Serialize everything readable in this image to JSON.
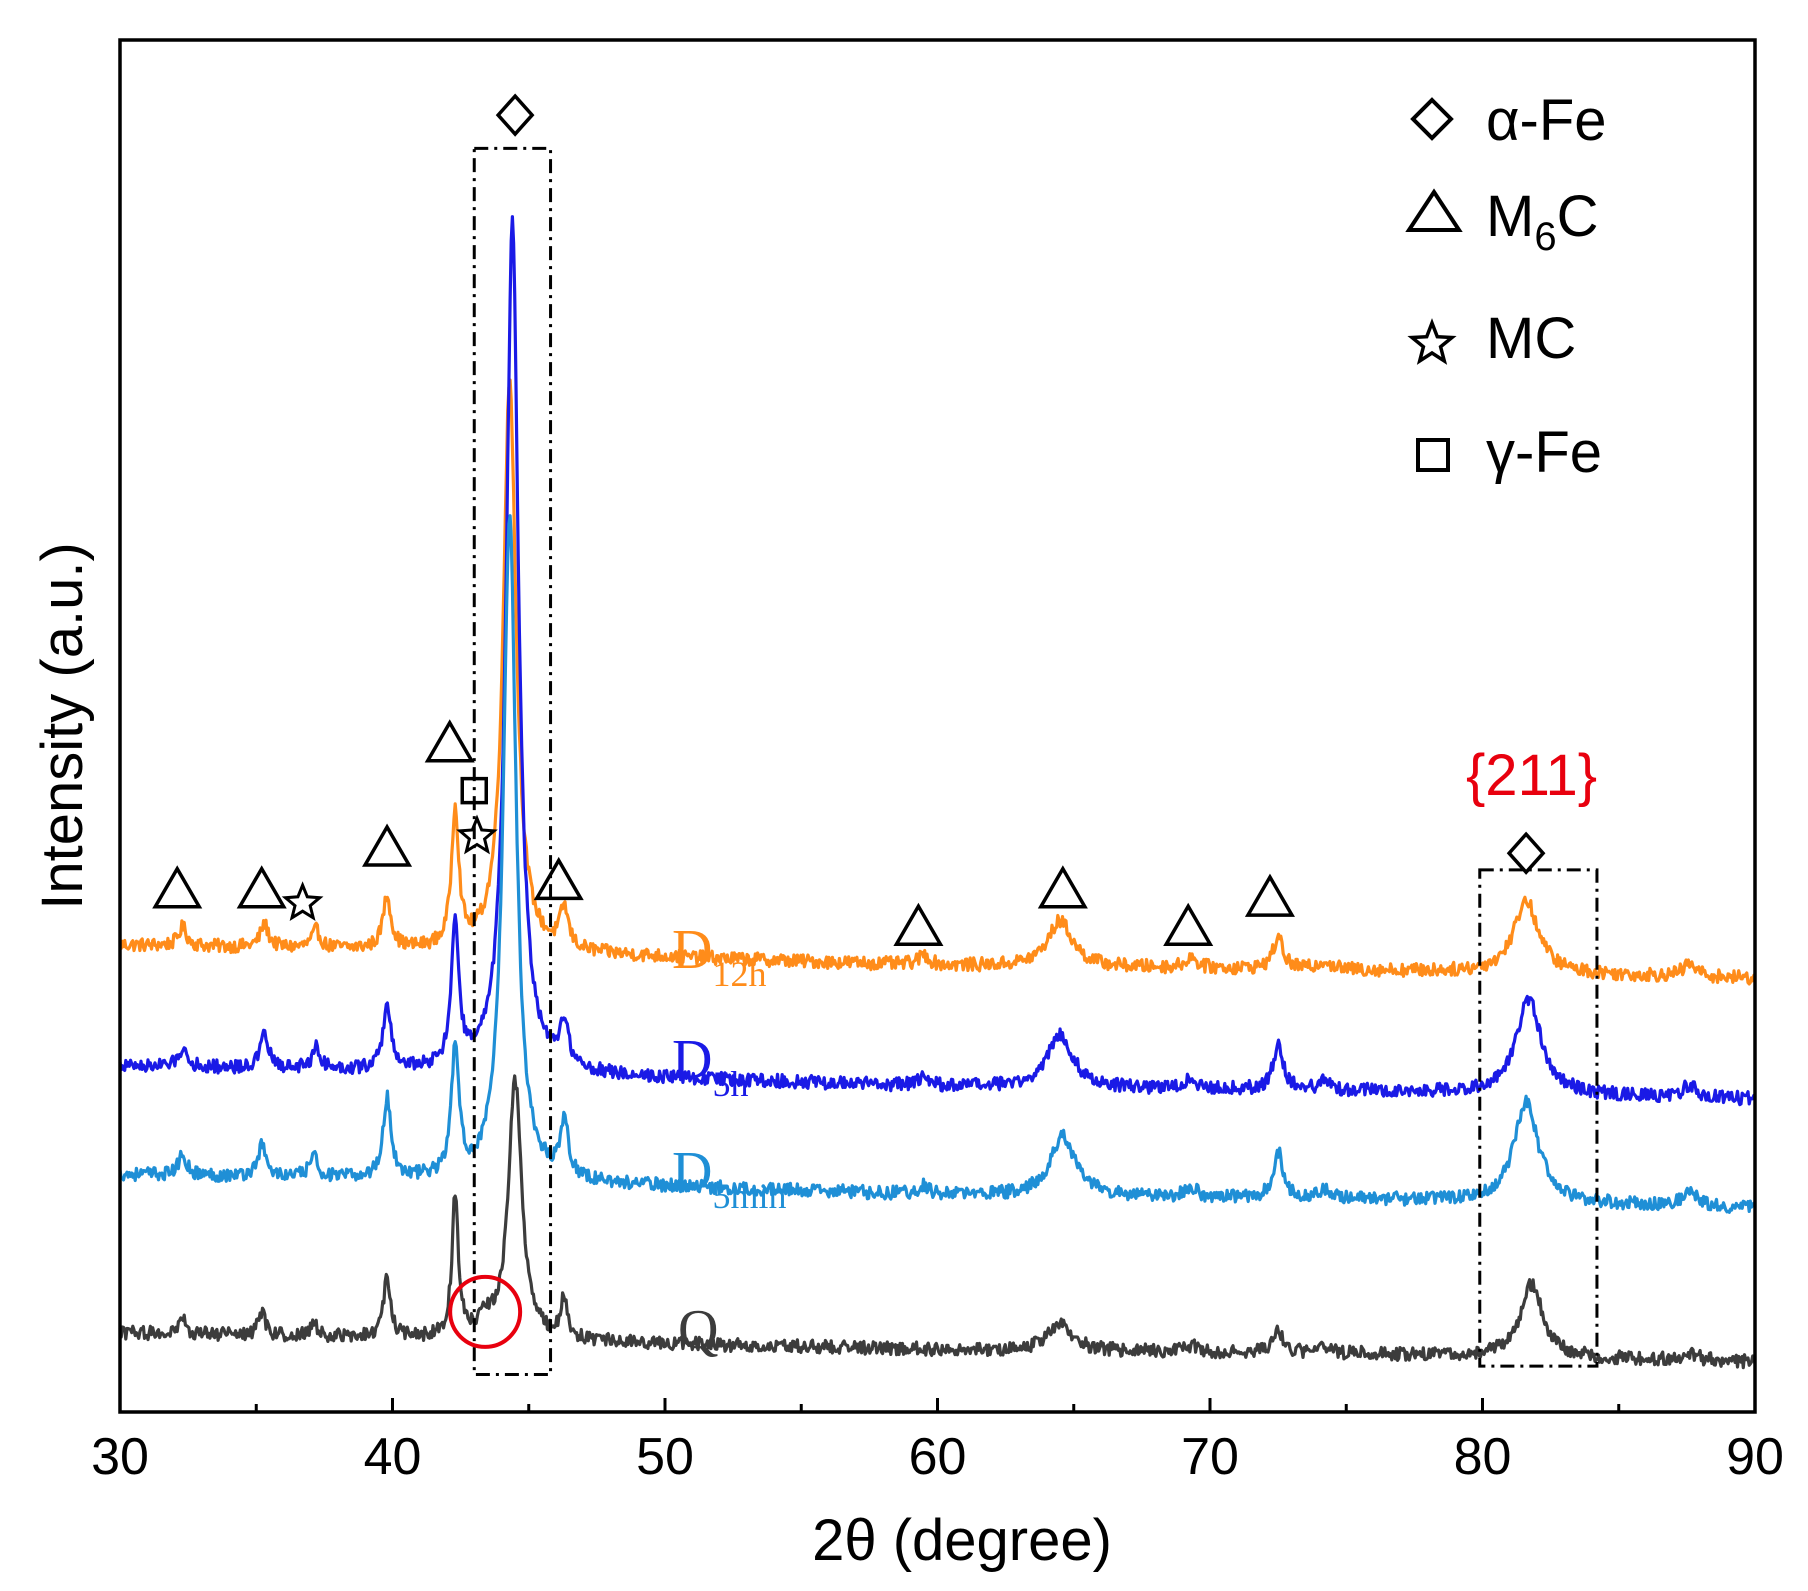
{
  "chart_data": {
    "type": "line",
    "title": "",
    "xlabel": "2θ (degree)",
    "ylabel": "Intensity (a.u.)",
    "xlim": [
      30,
      90
    ],
    "xticks": [
      "30",
      "40",
      "50",
      "60",
      "70",
      "80",
      "90"
    ],
    "yticks": [],
    "grid": false,
    "colors": {
      "D12h": "#ff8c1a",
      "D5h": "#1a1ae6",
      "D5min": "#1f8fd6",
      "Q": "#3c3c3c",
      "highlight": "#e8000e",
      "frame": "#000000"
    },
    "series": [
      {
        "name": "D12h",
        "label_main": "D",
        "label_sub": "12h",
        "color": "#ff8c1a",
        "baseline": [
          [
            30,
            10.3
          ],
          [
            45,
            10.1
          ],
          [
            60,
            9.8
          ],
          [
            75,
            9.7
          ],
          [
            90,
            9.5
          ]
        ],
        "peaks": [
          {
            "x": 32.3,
            "h": 0.45,
            "w": 0.18
          },
          {
            "x": 35.3,
            "h": 0.55,
            "w": 0.18
          },
          {
            "x": 37.2,
            "h": 0.42,
            "w": 0.18
          },
          {
            "x": 39.8,
            "h": 1.25,
            "w": 0.18
          },
          {
            "x": 42.3,
            "h": 3.3,
            "w": 0.16
          },
          {
            "x": 44.3,
            "h": 13.8,
            "w": 0.28
          },
          {
            "x": 46.3,
            "h": 0.95,
            "w": 0.18
          },
          {
            "x": 59.5,
            "h": 0.25,
            "w": 0.22
          },
          {
            "x": 64.5,
            "h": 1.1,
            "w": 0.55
          },
          {
            "x": 69.3,
            "h": 0.25,
            "w": 0.25
          },
          {
            "x": 72.5,
            "h": 0.75,
            "w": 0.22
          },
          {
            "x": 74.2,
            "h": 0.2,
            "w": 0.25
          },
          {
            "x": 81.6,
            "h": 1.75,
            "w": 0.55
          },
          {
            "x": 87.6,
            "h": 0.3,
            "w": 0.3
          }
        ]
      },
      {
        "name": "D5h",
        "label_main": "D",
        "label_sub": "5h",
        "color": "#1a1ae6",
        "baseline": [
          [
            30,
            7.4
          ],
          [
            45,
            7.2
          ],
          [
            60,
            6.9
          ],
          [
            75,
            6.8
          ],
          [
            90,
            6.6
          ]
        ],
        "peaks": [
          {
            "x": 32.3,
            "h": 0.45,
            "w": 0.18
          },
          {
            "x": 35.3,
            "h": 0.8,
            "w": 0.18
          },
          {
            "x": 37.2,
            "h": 0.5,
            "w": 0.18
          },
          {
            "x": 39.8,
            "h": 1.5,
            "w": 0.18
          },
          {
            "x": 42.3,
            "h": 3.5,
            "w": 0.16
          },
          {
            "x": 44.4,
            "h": 20.4,
            "w": 0.27
          },
          {
            "x": 46.3,
            "h": 1.1,
            "w": 0.18
          },
          {
            "x": 59.5,
            "h": 0.22,
            "w": 0.22
          },
          {
            "x": 64.5,
            "h": 1.3,
            "w": 0.55
          },
          {
            "x": 69.3,
            "h": 0.25,
            "w": 0.25
          },
          {
            "x": 72.5,
            "h": 1.05,
            "w": 0.22
          },
          {
            "x": 74.2,
            "h": 0.2,
            "w": 0.25
          },
          {
            "x": 81.7,
            "h": 2.3,
            "w": 0.55
          },
          {
            "x": 87.6,
            "h": 0.3,
            "w": 0.3
          }
        ]
      },
      {
        "name": "D5min",
        "label_main": "D",
        "label_sub": "5min",
        "color": "#1f8fd6",
        "baseline": [
          [
            30,
            4.8
          ],
          [
            45,
            4.6
          ],
          [
            60,
            4.3
          ],
          [
            75,
            4.2
          ],
          [
            90,
            4.0
          ]
        ],
        "peaks": [
          {
            "x": 32.3,
            "h": 0.5,
            "w": 0.18
          },
          {
            "x": 35.2,
            "h": 0.75,
            "w": 0.18
          },
          {
            "x": 37.1,
            "h": 0.5,
            "w": 0.18
          },
          {
            "x": 39.8,
            "h": 1.9,
            "w": 0.18
          },
          {
            "x": 42.3,
            "h": 3.1,
            "w": 0.16
          },
          {
            "x": 44.3,
            "h": 16.0,
            "w": 0.28
          },
          {
            "x": 46.3,
            "h": 1.35,
            "w": 0.18
          },
          {
            "x": 59.5,
            "h": 0.22,
            "w": 0.22
          },
          {
            "x": 64.6,
            "h": 1.45,
            "w": 0.55
          },
          {
            "x": 69.3,
            "h": 0.25,
            "w": 0.25
          },
          {
            "x": 72.5,
            "h": 1.1,
            "w": 0.22
          },
          {
            "x": 74.2,
            "h": 0.2,
            "w": 0.25
          },
          {
            "x": 81.6,
            "h": 2.4,
            "w": 0.55
          },
          {
            "x": 87.6,
            "h": 0.4,
            "w": 0.3
          }
        ]
      },
      {
        "name": "Q",
        "label_main": "Q",
        "label_sub": "",
        "color": "#3c3c3c",
        "baseline": [
          [
            30,
            1.0
          ],
          [
            45,
            0.8
          ],
          [
            60,
            0.6
          ],
          [
            75,
            0.5
          ],
          [
            90,
            0.3
          ]
        ],
        "peaks": [
          {
            "x": 32.3,
            "h": 0.35,
            "w": 0.15
          },
          {
            "x": 35.2,
            "h": 0.55,
            "w": 0.15
          },
          {
            "x": 37.1,
            "h": 0.35,
            "w": 0.15
          },
          {
            "x": 39.8,
            "h": 1.5,
            "w": 0.15
          },
          {
            "x": 42.3,
            "h": 3.4,
            "w": 0.14
          },
          {
            "x": 43.4,
            "h": 0.35,
            "w": 0.3
          },
          {
            "x": 44.5,
            "h": 6.2,
            "w": 0.3
          },
          {
            "x": 46.3,
            "h": 1.0,
            "w": 0.15
          },
          {
            "x": 64.5,
            "h": 0.7,
            "w": 0.5
          },
          {
            "x": 69.3,
            "h": 0.15,
            "w": 0.25
          },
          {
            "x": 72.5,
            "h": 0.55,
            "w": 0.22
          },
          {
            "x": 74.2,
            "h": 0.12,
            "w": 0.25
          },
          {
            "x": 81.8,
            "h": 1.75,
            "w": 0.5
          },
          {
            "x": 87.6,
            "h": 0.2,
            "w": 0.3
          }
        ]
      }
    ],
    "legend": {
      "location": "top-right",
      "entries": [
        {
          "marker": "diamond",
          "label": "α-Fe"
        },
        {
          "marker": "triangle",
          "label_main": "M",
          "label_sub": "6",
          "label_tail": "C"
        },
        {
          "marker": "star",
          "label": "MC"
        },
        {
          "marker": "square",
          "label": "γ-Fe"
        }
      ]
    },
    "peak_markers": [
      {
        "type": "diamond",
        "x": 44.5,
        "y": 30.2
      },
      {
        "type": "triangle",
        "x": 32.1,
        "y": 11.6
      },
      {
        "type": "triangle",
        "x": 35.2,
        "y": 11.6
      },
      {
        "type": "star",
        "x": 36.7,
        "y": 11.3
      },
      {
        "type": "triangle",
        "x": 39.8,
        "y": 12.6
      },
      {
        "type": "triangle",
        "x": 42.1,
        "y": 15.1
      },
      {
        "type": "square",
        "x": 43.0,
        "y": 14.0
      },
      {
        "type": "star",
        "x": 43.1,
        "y": 12.9
      },
      {
        "type": "triangle",
        "x": 46.1,
        "y": 11.8
      },
      {
        "type": "triangle",
        "x": 59.3,
        "y": 10.7
      },
      {
        "type": "triangle",
        "x": 64.6,
        "y": 11.6
      },
      {
        "type": "triangle",
        "x": 69.2,
        "y": 10.7
      },
      {
        "type": "triangle",
        "x": 72.2,
        "y": 11.4
      },
      {
        "type": "diamond",
        "x": 81.6,
        "y": 12.5
      }
    ],
    "annotations": {
      "plane_label": "{211}",
      "plane_label_x": 81.8,
      "plane_label_y": 13.9,
      "circle_center": {
        "x": 43.4,
        "y": 1.5
      }
    },
    "boxes": [
      {
        "x0": 43.0,
        "x1": 45.8,
        "y0": 0.0,
        "y1": 29.4
      },
      {
        "x0": 79.9,
        "x1": 84.2,
        "y0": 0.2,
        "y1": 12.1
      }
    ],
    "ylim": [
      -0.9,
      32.0
    ]
  }
}
